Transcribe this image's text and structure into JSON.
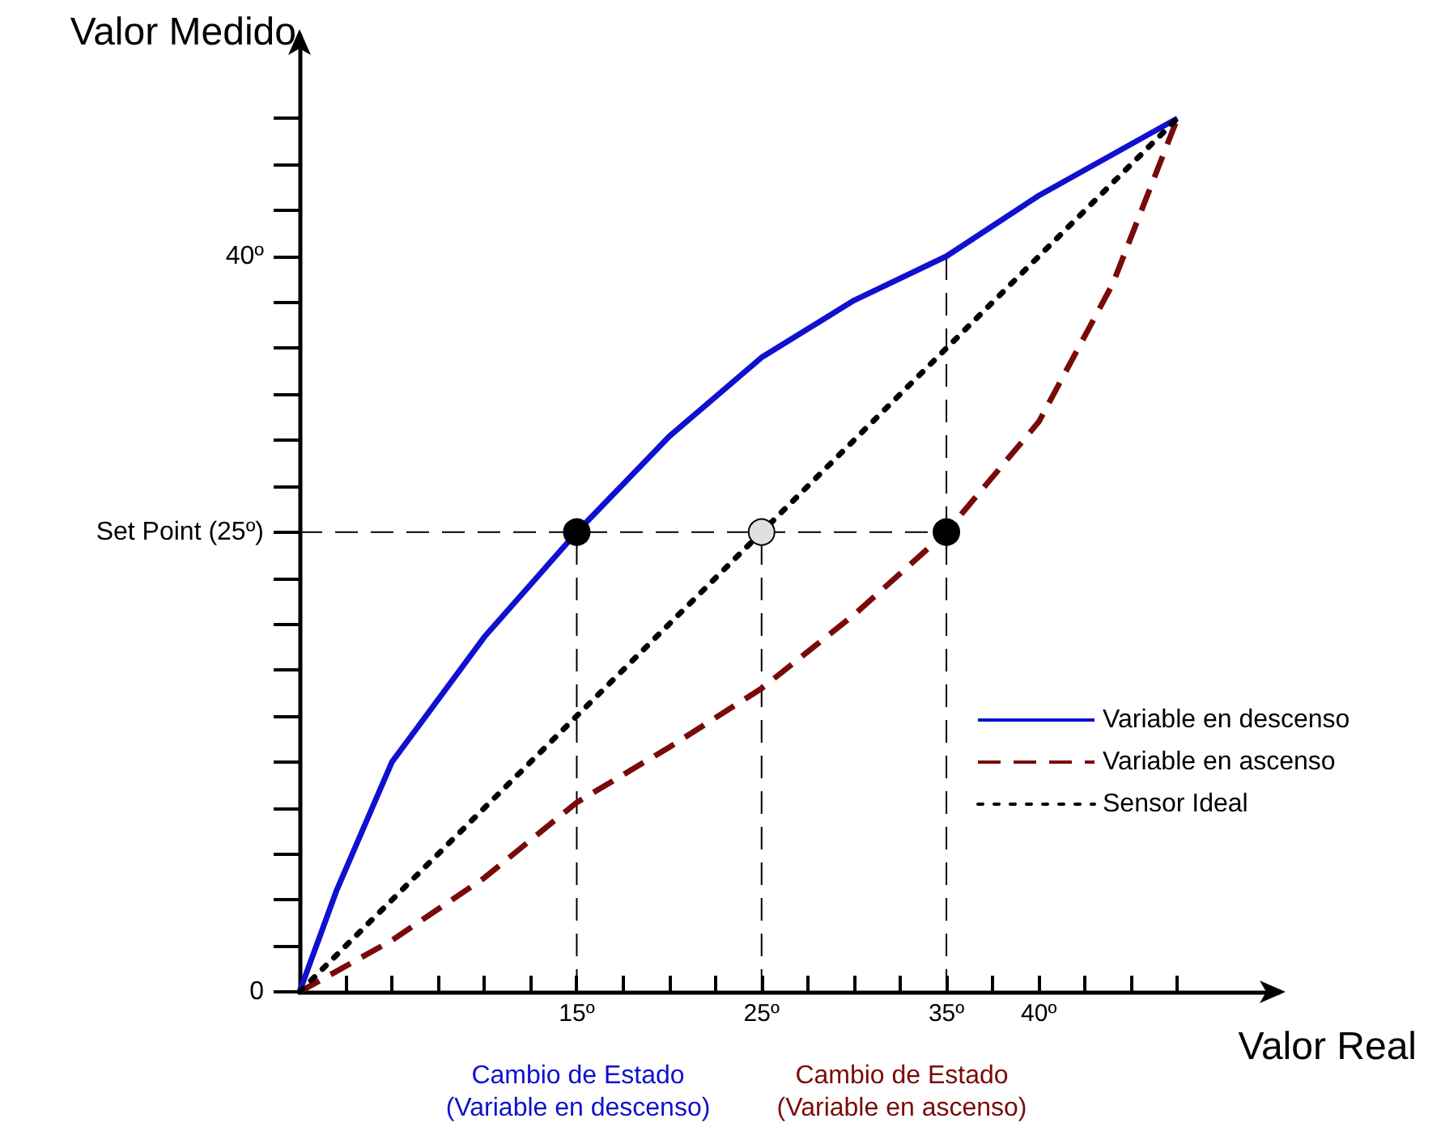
{
  "chart_data": {
    "type": "line",
    "xlabel": "Valor Real",
    "ylabel": "Valor Medido",
    "xlim": [
      0,
      53
    ],
    "ylim": [
      0,
      52
    ],
    "xticks": [
      {
        "value": 2.5,
        "label": null
      },
      {
        "value": 5,
        "label": null
      },
      {
        "value": 7.5,
        "label": null
      },
      {
        "value": 10,
        "label": null
      },
      {
        "value": 12.5,
        "label": null
      },
      {
        "value": 15,
        "label": "15º"
      },
      {
        "value": 17.5,
        "label": null
      },
      {
        "value": 20,
        "label": null
      },
      {
        "value": 22.5,
        "label": null
      },
      {
        "value": 25,
        "label": "25º"
      },
      {
        "value": 27.5,
        "label": null
      },
      {
        "value": 30,
        "label": null
      },
      {
        "value": 32.5,
        "label": null
      },
      {
        "value": 35,
        "label": "35º"
      },
      {
        "value": 37.5,
        "label": null
      },
      {
        "value": 40,
        "label": "40º"
      },
      {
        "value": 42.5,
        "label": null
      },
      {
        "value": 45,
        "label": null
      },
      {
        "value": 47.5,
        "label": null
      }
    ],
    "yticks": [
      {
        "value": 0,
        "label": "0"
      },
      {
        "value": 2.5,
        "label": null
      },
      {
        "value": 5,
        "label": null
      },
      {
        "value": 7.5,
        "label": null
      },
      {
        "value": 10,
        "label": null
      },
      {
        "value": 12.5,
        "label": null
      },
      {
        "value": 15,
        "label": null
      },
      {
        "value": 17.5,
        "label": null
      },
      {
        "value": 20,
        "label": null
      },
      {
        "value": 22.5,
        "label": null
      },
      {
        "value": 25,
        "label": "Set Point (25º)"
      },
      {
        "value": 27.5,
        "label": null
      },
      {
        "value": 30,
        "label": null
      },
      {
        "value": 32.5,
        "label": null
      },
      {
        "value": 35,
        "label": null
      },
      {
        "value": 37.5,
        "label": null
      },
      {
        "value": 40,
        "label": "40º"
      },
      {
        "value": 42.5,
        "label": null
      },
      {
        "value": 45,
        "label": null
      },
      {
        "value": 47.5,
        "label": null
      }
    ],
    "grid": false,
    "legend": "bottom right",
    "marker": "none",
    "series": [
      {
        "name": "Variable en descenso",
        "color": "#1010d0",
        "line_style": "solid",
        "x": [
          0,
          2,
          5,
          10,
          15,
          20,
          25,
          30,
          35,
          40,
          47.5
        ],
        "values": [
          0,
          5.5,
          12.5,
          19.3,
          25,
          30.2,
          34.5,
          37.6,
          40,
          43.3,
          47.5
        ]
      },
      {
        "name": "Variable en ascenso",
        "color": "#7a0a0a",
        "line_style": "dashed",
        "x": [
          0,
          5,
          10,
          15,
          20,
          25,
          30,
          35,
          40,
          44,
          47.5
        ],
        "values": [
          0,
          2.8,
          6.2,
          10.3,
          13.3,
          16.5,
          20.5,
          25,
          31,
          38.5,
          47.5
        ]
      },
      {
        "name": "Sensor Ideal",
        "color": "#000000",
        "line_style": "dotted",
        "x": [
          0,
          47.5
        ],
        "values": [
          0,
          47.5
        ]
      },
      {
        "type": "line",
        "color": "#000000",
        "line_style": "dashed",
        "x": [
          0,
          35
        ],
        "values": [
          25,
          25
        ]
      },
      {
        "type": "line",
        "color": "#000000",
        "line_style": "dashed",
        "x": [
          15,
          15
        ],
        "values": [
          0,
          25
        ]
      },
      {
        "type": "line",
        "color": "#000000",
        "line_style": "dashed",
        "x": [
          25,
          25
        ],
        "values": [
          0,
          25
        ]
      },
      {
        "type": "line",
        "color": "#000000",
        "line_style": "dashed",
        "x": [
          35,
          35
        ],
        "values": [
          0,
          40
        ]
      },
      {
        "type": "scatter",
        "marker": "circle",
        "colors": [
          "#000000",
          "#e0e0e0",
          "#000000"
        ],
        "x": [
          15,
          25,
          35
        ],
        "values": [
          25,
          25,
          25
        ]
      }
    ],
    "annotations": [
      "Cambio de Estado\n(Variable en descenso)",
      "Cambio de Estado\n(Variable en ascenso)"
    ]
  }
}
